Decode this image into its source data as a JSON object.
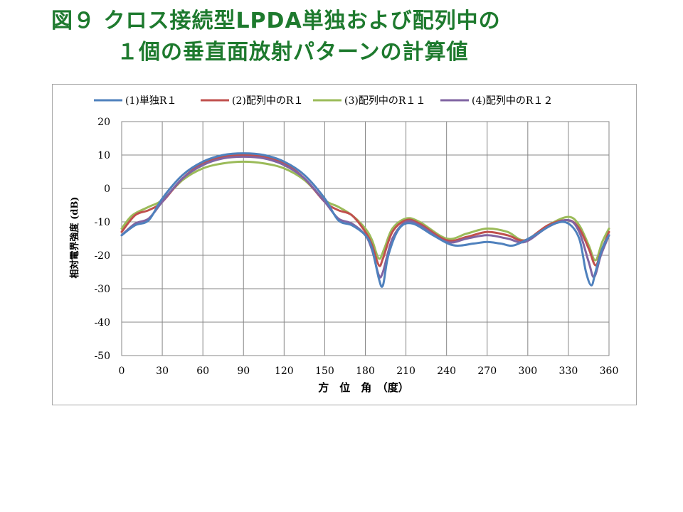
{
  "title": {
    "line1": "図９ クロス接続型LPDA単独および配列中の",
    "line2": "１個の垂直面放射パターンの計算値"
  },
  "chart_data": {
    "type": "line",
    "title": "",
    "xlabel": "方　位　角　（度）",
    "ylabel": "相対電界強度 (dB)",
    "xlim": [
      0,
      360
    ],
    "ylim": [
      -50,
      20
    ],
    "xticks": [
      0,
      30,
      60,
      90,
      120,
      150,
      180,
      210,
      240,
      270,
      300,
      330,
      360
    ],
    "yticks": [
      20,
      10,
      0,
      -10,
      -20,
      -30,
      -40,
      -50
    ],
    "grid": true,
    "legend_position": "top",
    "series": [
      {
        "name": "(1)単独R１",
        "color": "#4f81bd",
        "points": [
          [
            0,
            -14
          ],
          [
            10,
            -11
          ],
          [
            20,
            -9.5
          ],
          [
            30,
            -3
          ],
          [
            45,
            4
          ],
          [
            60,
            8
          ],
          [
            75,
            10
          ],
          [
            90,
            10.5
          ],
          [
            105,
            10
          ],
          [
            120,
            8
          ],
          [
            135,
            4
          ],
          [
            150,
            -3
          ],
          [
            160,
            -9.5
          ],
          [
            170,
            -11
          ],
          [
            180,
            -14
          ],
          [
            185,
            -18
          ],
          [
            190,
            -27
          ],
          [
            193,
            -29
          ],
          [
            197,
            -20
          ],
          [
            205,
            -12
          ],
          [
            215,
            -10.5
          ],
          [
            230,
            -14
          ],
          [
            245,
            -17
          ],
          [
            260,
            -16.5
          ],
          [
            270,
            -16
          ],
          [
            280,
            -16.5
          ],
          [
            290,
            -17
          ],
          [
            305,
            -14
          ],
          [
            320,
            -10.5
          ],
          [
            330,
            -10.5
          ],
          [
            338,
            -15
          ],
          [
            343,
            -25
          ],
          [
            347,
            -29
          ],
          [
            350,
            -25
          ],
          [
            355,
            -18
          ],
          [
            360,
            -14
          ]
        ]
      },
      {
        "name": "(2)配列中のR１",
        "color": "#c0504d",
        "points": [
          [
            0,
            -13
          ],
          [
            10,
            -8
          ],
          [
            20,
            -6.5
          ],
          [
            30,
            -4
          ],
          [
            45,
            3
          ],
          [
            60,
            7.5
          ],
          [
            75,
            9.5
          ],
          [
            90,
            10
          ],
          [
            105,
            9.5
          ],
          [
            120,
            7.5
          ],
          [
            135,
            3
          ],
          [
            150,
            -4
          ],
          [
            160,
            -6.5
          ],
          [
            170,
            -8
          ],
          [
            180,
            -13
          ],
          [
            185,
            -17
          ],
          [
            190,
            -23
          ],
          [
            193,
            -21
          ],
          [
            200,
            -13
          ],
          [
            210,
            -9.5
          ],
          [
            220,
            -10.5
          ],
          [
            240,
            -15.5
          ],
          [
            255,
            -14.5
          ],
          [
            270,
            -13
          ],
          [
            285,
            -14
          ],
          [
            298,
            -15.5
          ],
          [
            315,
            -11
          ],
          [
            330,
            -9.5
          ],
          [
            338,
            -12
          ],
          [
            345,
            -18
          ],
          [
            350,
            -23
          ],
          [
            354,
            -19
          ],
          [
            360,
            -13
          ]
        ]
      },
      {
        "name": "(3)配列中のR１１",
        "color": "#9bbb59",
        "points": [
          [
            0,
            -12
          ],
          [
            8,
            -8
          ],
          [
            20,
            -5.5
          ],
          [
            30,
            -3.5
          ],
          [
            45,
            2.5
          ],
          [
            60,
            6
          ],
          [
            75,
            7.5
          ],
          [
            90,
            8
          ],
          [
            105,
            7.5
          ],
          [
            120,
            6
          ],
          [
            135,
            2.5
          ],
          [
            150,
            -3.5
          ],
          [
            160,
            -5.5
          ],
          [
            170,
            -8
          ],
          [
            180,
            -12
          ],
          [
            185,
            -15.5
          ],
          [
            190,
            -21
          ],
          [
            194,
            -18
          ],
          [
            200,
            -12
          ],
          [
            210,
            -9
          ],
          [
            220,
            -10
          ],
          [
            240,
            -15
          ],
          [
            255,
            -13.5
          ],
          [
            270,
            -12
          ],
          [
            285,
            -13
          ],
          [
            298,
            -15.5
          ],
          [
            315,
            -11
          ],
          [
            330,
            -8.5
          ],
          [
            338,
            -11
          ],
          [
            345,
            -17
          ],
          [
            350,
            -21.5
          ],
          [
            355,
            -16
          ],
          [
            360,
            -12
          ]
        ]
      },
      {
        "name": "(4)配列中のR１２",
        "color": "#8064a2",
        "points": [
          [
            0,
            -14
          ],
          [
            10,
            -10.5
          ],
          [
            20,
            -9
          ],
          [
            30,
            -4
          ],
          [
            45,
            3
          ],
          [
            60,
            7
          ],
          [
            75,
            9
          ],
          [
            90,
            9.5
          ],
          [
            105,
            9
          ],
          [
            120,
            7
          ],
          [
            135,
            3
          ],
          [
            150,
            -4
          ],
          [
            160,
            -9
          ],
          [
            170,
            -10.5
          ],
          [
            180,
            -14
          ],
          [
            185,
            -18.5
          ],
          [
            190,
            -26
          ],
          [
            193,
            -25
          ],
          [
            200,
            -15
          ],
          [
            210,
            -10
          ],
          [
            220,
            -11
          ],
          [
            240,
            -16
          ],
          [
            255,
            -15
          ],
          [
            270,
            -14
          ],
          [
            285,
            -15
          ],
          [
            298,
            -16
          ],
          [
            315,
            -11.5
          ],
          [
            330,
            -9.5
          ],
          [
            338,
            -13
          ],
          [
            345,
            -22
          ],
          [
            349,
            -26.5
          ],
          [
            354,
            -20
          ],
          [
            360,
            -14
          ]
        ]
      }
    ]
  }
}
